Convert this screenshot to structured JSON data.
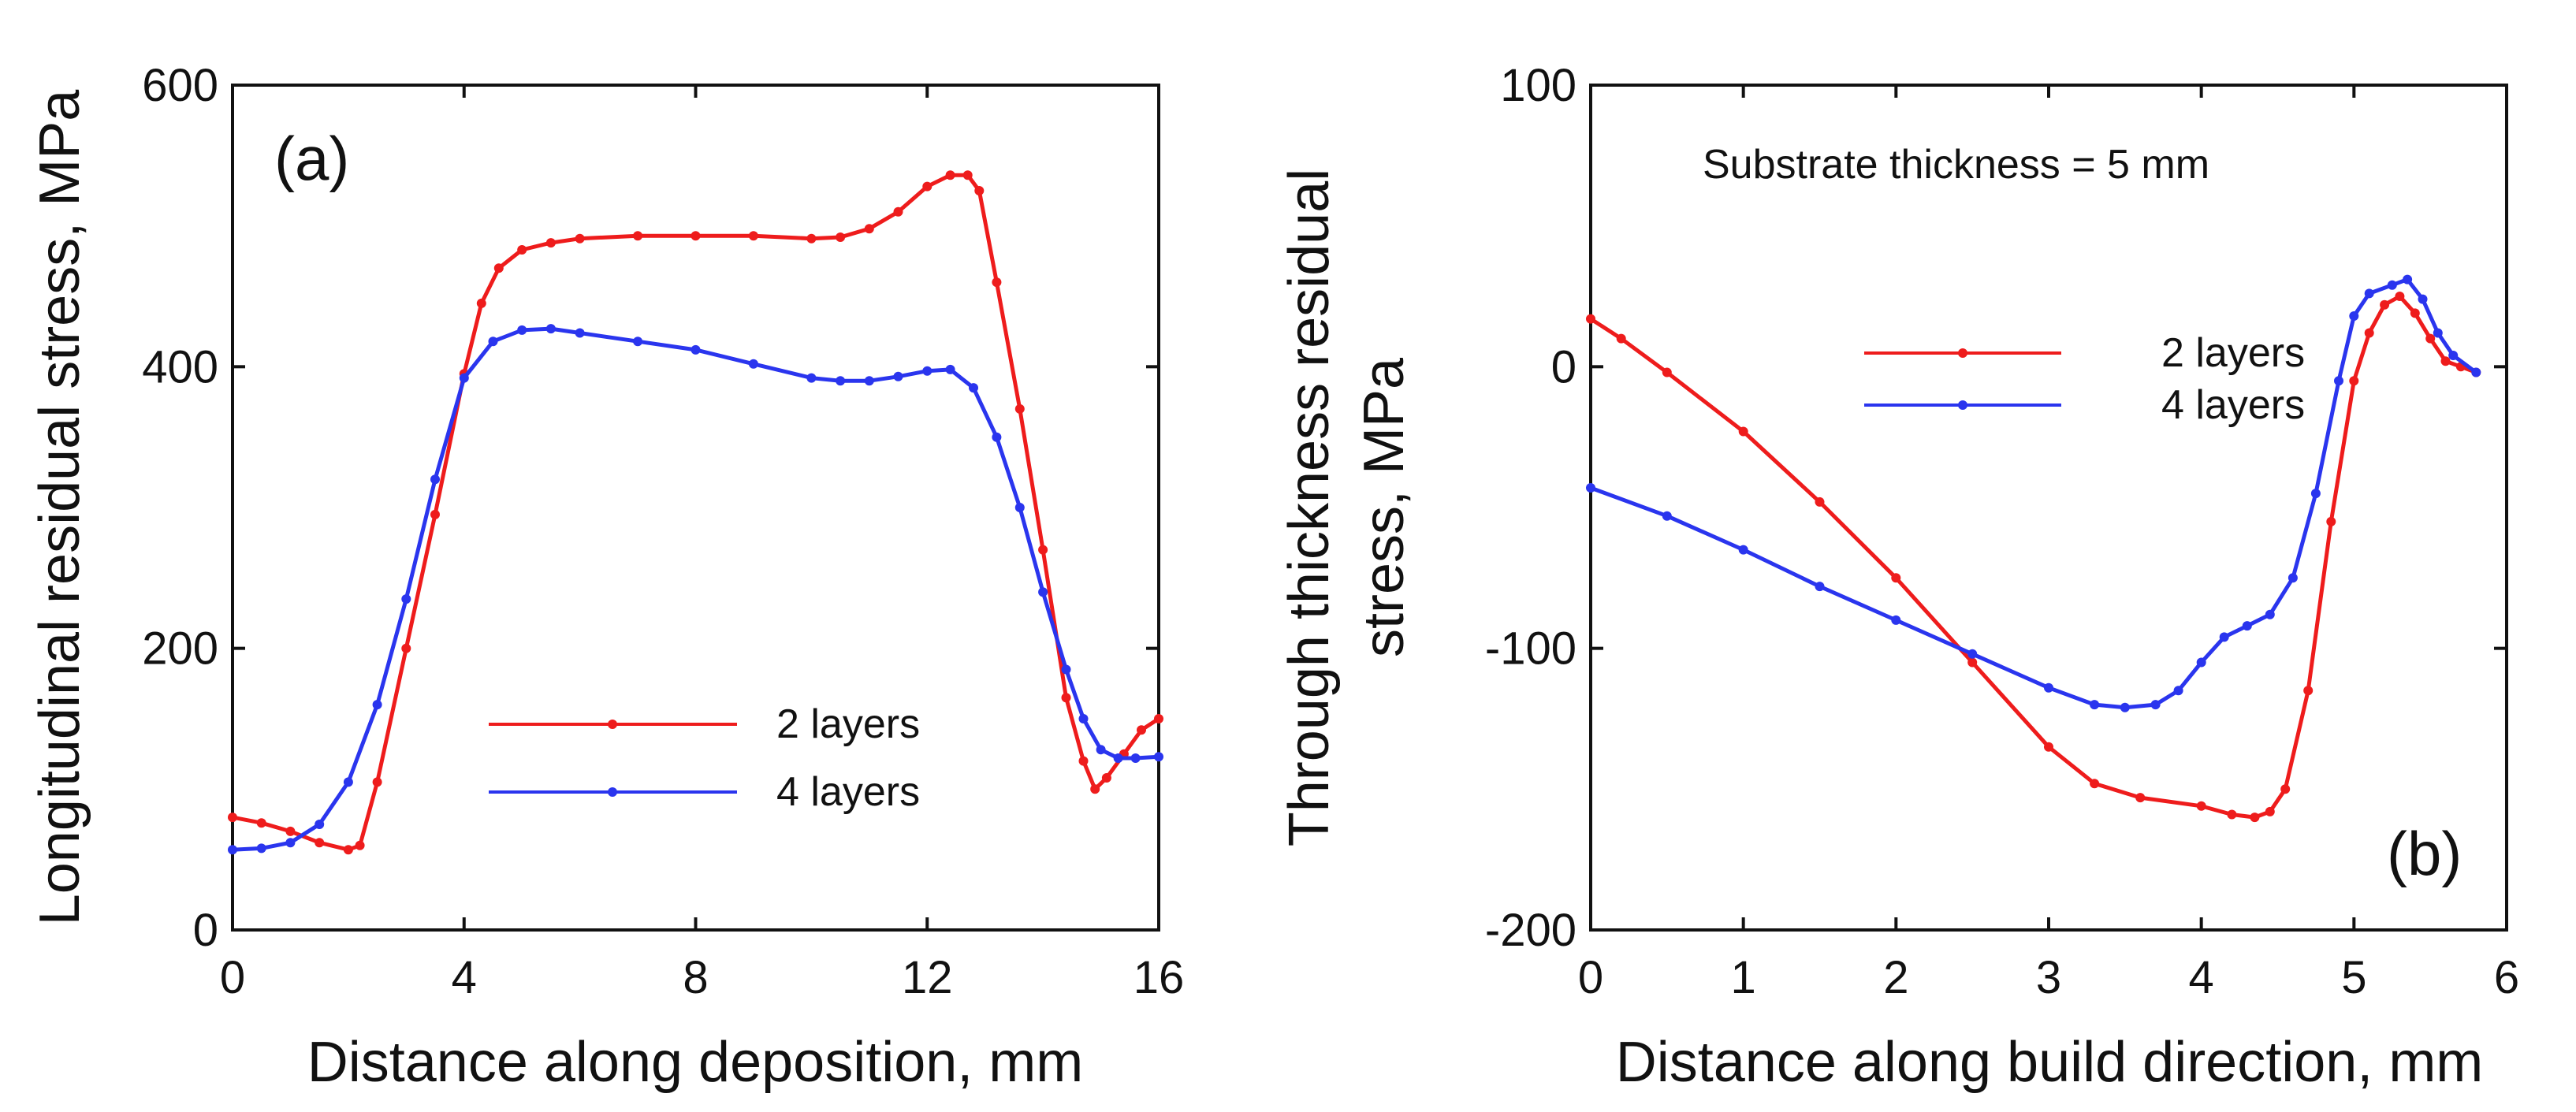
{
  "chart_data": [
    {
      "type": "line",
      "panel_label": "(a)",
      "xlabel": "Distance along deposition, mm",
      "ylabel": "Longitudinal residual stress, MPa",
      "xlim": [
        0,
        16
      ],
      "ylim": [
        0,
        600
      ],
      "xticks": [
        0,
        4,
        8,
        12,
        16
      ],
      "yticks": [
        0,
        200,
        400,
        600
      ],
      "grid": false,
      "legend_position": "center",
      "series": [
        {
          "name": "2 layers",
          "color": "#ee1c1c",
          "x": [
            0,
            0.5,
            1,
            1.5,
            2,
            2.2,
            2.5,
            3,
            3.5,
            4,
            4.3,
            4.6,
            5,
            5.5,
            6,
            7,
            8,
            9,
            10,
            10.5,
            11,
            11.5,
            12,
            12.4,
            12.7,
            12.9,
            13.2,
            13.6,
            14,
            14.4,
            14.7,
            14.9,
            15.1,
            15.4,
            15.7,
            16
          ],
          "y": [
            80,
            76,
            70,
            62,
            57,
            60,
            105,
            200,
            295,
            395,
            445,
            470,
            483,
            488,
            491,
            493,
            493,
            493,
            491,
            492,
            498,
            510,
            528,
            536,
            536,
            525,
            460,
            370,
            270,
            165,
            120,
            100,
            108,
            125,
            142,
            150
          ]
        },
        {
          "name": "4 layers",
          "color": "#2a35ee",
          "x": [
            0,
            0.5,
            1,
            1.5,
            2,
            2.5,
            3,
            3.5,
            4,
            4.5,
            5,
            5.5,
            6,
            7,
            8,
            9,
            10,
            10.5,
            11,
            11.5,
            12,
            12.4,
            12.8,
            13.2,
            13.6,
            14,
            14.4,
            14.7,
            15,
            15.3,
            15.6,
            16
          ],
          "y": [
            57,
            58,
            62,
            75,
            105,
            160,
            235,
            320,
            392,
            418,
            426,
            427,
            424,
            418,
            412,
            402,
            392,
            390,
            390,
            393,
            397,
            398,
            385,
            350,
            300,
            240,
            185,
            150,
            128,
            122,
            122,
            123
          ]
        }
      ]
    },
    {
      "type": "line",
      "panel_label": "(b)",
      "annotation": "Substrate thickness = 5 mm",
      "xlabel": "Distance along build direction, mm",
      "ylabel_line1": "Through thickness residual",
      "ylabel_line2": "stress, MPa",
      "xlim": [
        0,
        6
      ],
      "ylim": [
        -200,
        100
      ],
      "xticks": [
        0,
        1,
        2,
        3,
        4,
        5,
        6
      ],
      "yticks": [
        -200,
        -100,
        0,
        100
      ],
      "grid": false,
      "legend_position": "upper-right",
      "series": [
        {
          "name": "2 layers",
          "color": "#ee1c1c",
          "x": [
            0,
            0.2,
            0.5,
            1,
            1.5,
            2,
            2.5,
            3,
            3.3,
            3.6,
            4,
            4.2,
            4.35,
            4.45,
            4.55,
            4.7,
            4.85,
            5,
            5.1,
            5.2,
            5.3,
            5.4,
            5.5,
            5.6,
            5.7,
            5.8
          ],
          "y": [
            17,
            10,
            -2,
            -23,
            -48,
            -75,
            -105,
            -135,
            -148,
            -153,
            -156,
            -159,
            -160,
            -158,
            -150,
            -115,
            -55,
            -5,
            12,
            22,
            25,
            19,
            10,
            2,
            0,
            -2
          ]
        },
        {
          "name": "4 layers",
          "color": "#2a35ee",
          "x": [
            0,
            0.5,
            1,
            1.5,
            2,
            2.5,
            3,
            3.3,
            3.5,
            3.7,
            3.85,
            4,
            4.15,
            4.3,
            4.45,
            4.6,
            4.75,
            4.9,
            5,
            5.1,
            5.25,
            5.35,
            5.45,
            5.55,
            5.65,
            5.8
          ],
          "y": [
            -43,
            -53,
            -65,
            -78,
            -90,
            -102,
            -114,
            -120,
            -121,
            -120,
            -115,
            -105,
            -96,
            -92,
            -88,
            -75,
            -45,
            -5,
            18,
            26,
            29,
            31,
            24,
            12,
            4,
            -2
          ]
        }
      ]
    }
  ]
}
